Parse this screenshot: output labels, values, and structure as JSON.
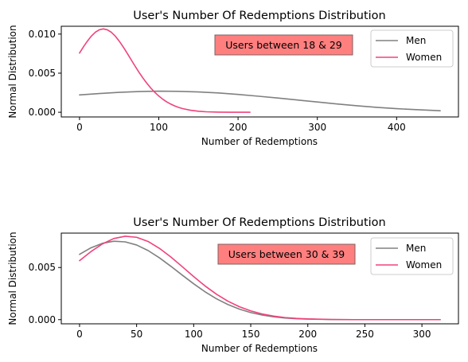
{
  "chart_data": [
    {
      "type": "line",
      "title": "User's Number Of Redemptions Distribution",
      "xlabel": "Number of Redemptions",
      "ylabel": "Normal Distribution",
      "xlim": [
        -23,
        478
      ],
      "ylim": [
        -0.0006,
        0.011
      ],
      "xticks": [
        0,
        100,
        200,
        300,
        400
      ],
      "xtick_labels": [
        "0",
        "100",
        "200",
        "300",
        "400"
      ],
      "yticks": [
        0.0,
        0.005,
        0.01
      ],
      "ytick_labels": [
        "0.000",
        "0.005",
        "0.010"
      ],
      "legend_position": "upper-right",
      "annotation": "Users between 18 & 29",
      "series": [
        {
          "name": "Men",
          "color": "#808080",
          "x": [
            0,
            25,
            50,
            75,
            100,
            125,
            150,
            175,
            200,
            225,
            250,
            275,
            300,
            325,
            350,
            375,
            400,
            425,
            455
          ],
          "y": [
            0.00222,
            0.0024,
            0.00255,
            0.00265,
            0.0027,
            0.00268,
            0.0026,
            0.00247,
            0.00228,
            0.00206,
            0.00182,
            0.00157,
            0.00131,
            0.00106,
            0.00083,
            0.00063,
            0.00046,
            0.00033,
            0.0002
          ]
        },
        {
          "name": "Women",
          "color": "#f0427a",
          "x": [
            0,
            5,
            10,
            15,
            20,
            25,
            30,
            35,
            40,
            45,
            50,
            55,
            60,
            65,
            70,
            75,
            80,
            85,
            90,
            95,
            100,
            105,
            110,
            115,
            120,
            125,
            130,
            140,
            150,
            160,
            175,
            190,
            215
          ],
          "y": [
            0.00757,
            0.00837,
            0.00911,
            0.00975,
            0.01024,
            0.01055,
            0.01066,
            0.01055,
            0.01024,
            0.00975,
            0.00911,
            0.00837,
            0.00757,
            0.00674,
            0.00591,
            0.00512,
            0.00438,
            0.0037,
            0.00309,
            0.00255,
            0.00208,
            0.00167,
            0.00133,
            0.00105,
            0.00081,
            0.00062,
            0.00047,
            0.00026,
            0.00013,
            6e-05,
            2e-05,
            5e-06,
            0.0
          ]
        }
      ]
    },
    {
      "type": "line",
      "title": "User's Number Of Redemptions Distribution",
      "xlabel": "Number of Redemptions",
      "ylabel": "Normal Distribution",
      "xlim": [
        -16,
        332
      ],
      "ylim": [
        -0.0004,
        0.0083
      ],
      "xticks": [
        0,
        50,
        100,
        150,
        200,
        250,
        300
      ],
      "xtick_labels": [
        "0",
        "50",
        "100",
        "150",
        "200",
        "250",
        "300"
      ],
      "yticks": [
        0.0,
        0.005
      ],
      "ytick_labels": [
        "0.000",
        "0.005"
      ],
      "legend_position": "upper-right",
      "annotation": "Users between 30 & 39",
      "series": [
        {
          "name": "Men",
          "color": "#808080",
          "x": [
            0,
            10,
            20,
            30,
            40,
            50,
            60,
            70,
            80,
            90,
            100,
            110,
            120,
            130,
            140,
            150,
            160,
            170,
            180,
            190,
            200,
            220,
            240,
            270,
            300,
            316
          ],
          "y": [
            0.00626,
            0.00689,
            0.00732,
            0.00752,
            0.00746,
            0.00716,
            0.00663,
            0.00593,
            0.00512,
            0.00427,
            0.00344,
            0.00267,
            0.002,
            0.00145,
            0.00101,
            0.00068,
            0.00044,
            0.00027,
            0.00016,
            9e-05,
            5e-05,
            1e-05,
            0.0,
            0.0,
            0.0,
            0.0
          ]
        },
        {
          "name": "Women",
          "color": "#f0427a",
          "x": [
            0,
            10,
            20,
            30,
            40,
            50,
            60,
            70,
            80,
            90,
            100,
            110,
            120,
            130,
            140,
            150,
            160,
            170,
            180,
            190,
            200,
            220,
            240,
            270,
            300,
            316
          ],
          "y": [
            0.00566,
            0.00653,
            0.00726,
            0.00778,
            0.008,
            0.0079,
            0.0075,
            0.00684,
            0.00601,
            0.00508,
            0.00413,
            0.00323,
            0.00244,
            0.00177,
            0.00124,
            0.00084,
            0.00054,
            0.00034,
            0.0002,
            0.00012,
            7e-05,
            2e-05,
            0.0,
            0.0,
            0.0,
            0.0
          ]
        }
      ]
    }
  ]
}
